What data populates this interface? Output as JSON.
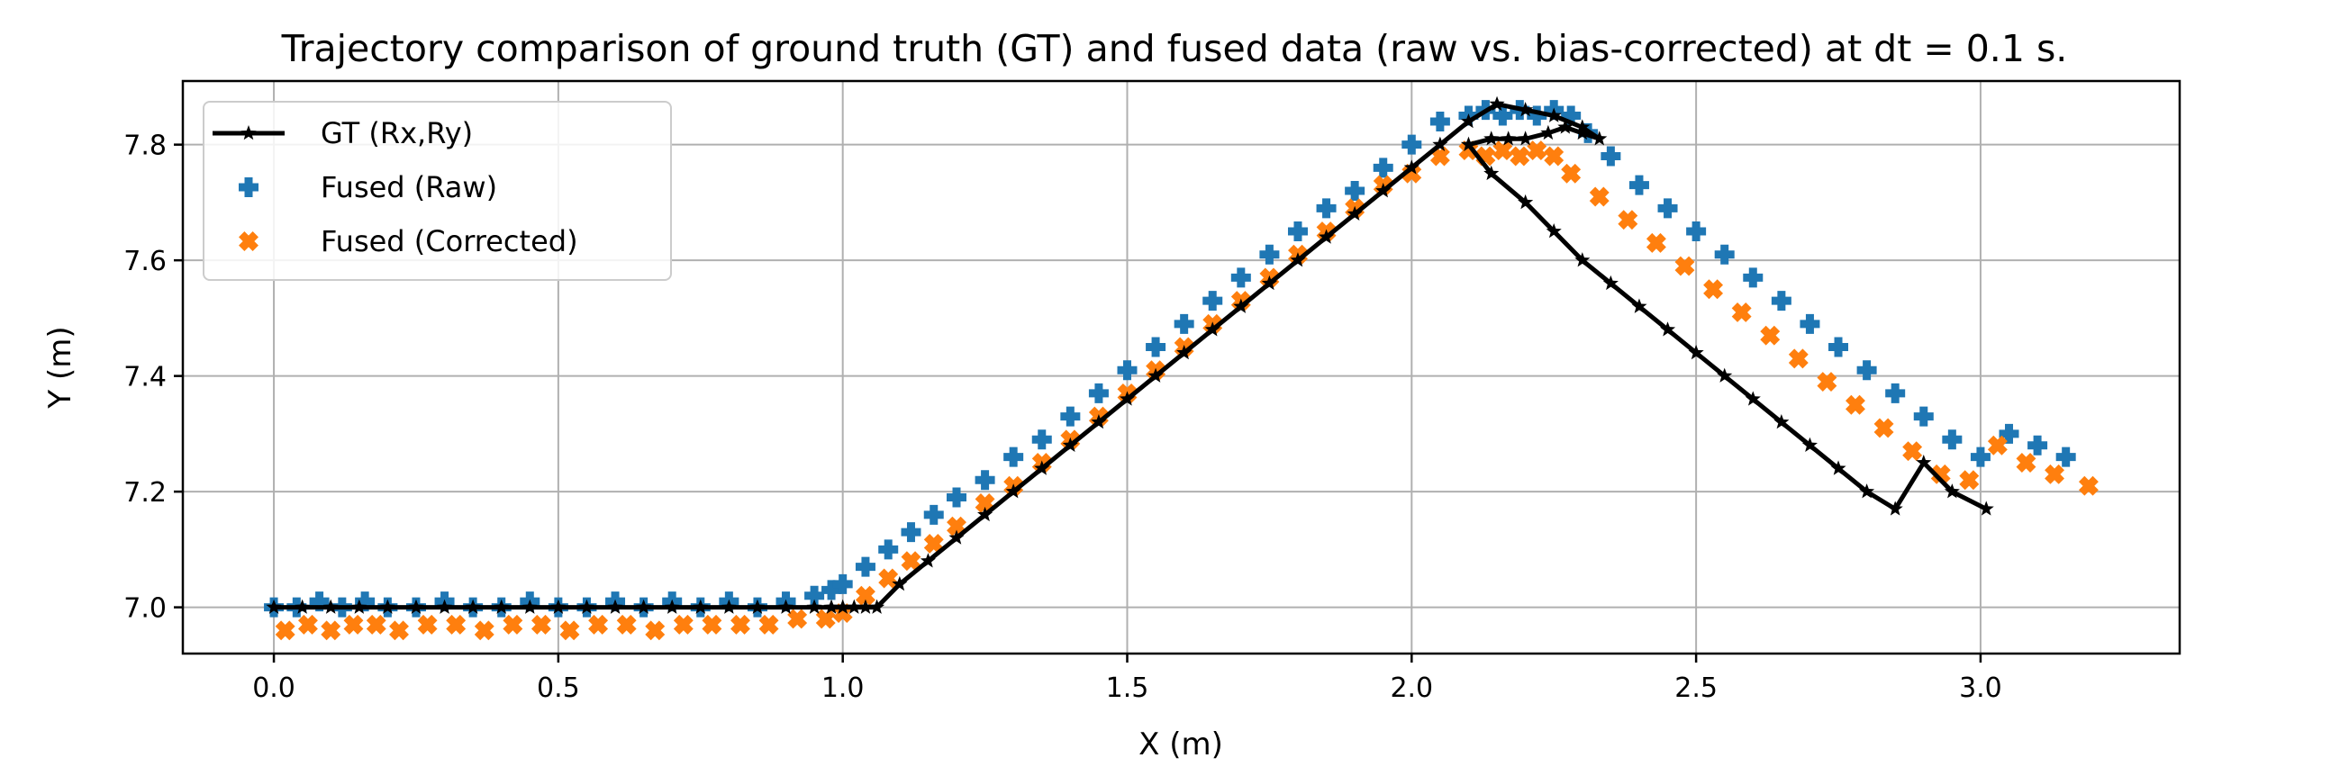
{
  "chart_data": {
    "type": "scatter",
    "title": "Trajectory comparison of ground truth (GT) and fused data (raw vs. bias-corrected) at dt = 0.1 s.",
    "xlabel": "X (m)",
    "ylabel": "Y (m)",
    "xlim": [
      -0.16,
      3.35
    ],
    "ylim": [
      6.92,
      7.91
    ],
    "xticks": [
      0.0,
      0.5,
      1.0,
      1.5,
      2.0,
      2.5,
      3.0
    ],
    "xtick_labels": [
      "0.0",
      "0.5",
      "1.0",
      "1.5",
      "2.0",
      "2.5",
      "3.0"
    ],
    "yticks": [
      7.0,
      7.2,
      7.4,
      7.6,
      7.8
    ],
    "ytick_labels": [
      "7.0",
      "7.2",
      "7.4",
      "7.6",
      "7.8"
    ],
    "grid": true,
    "legend_position": "top-left",
    "series": [
      {
        "name": "GT (Rx,Ry)",
        "kind": "line-star",
        "color": "#000000",
        "x": [
          0.0,
          0.05,
          0.1,
          0.15,
          0.2,
          0.25,
          0.3,
          0.35,
          0.4,
          0.45,
          0.5,
          0.55,
          0.6,
          0.65,
          0.7,
          0.75,
          0.8,
          0.85,
          0.9,
          0.95,
          0.98,
          1.0,
          1.02,
          1.04,
          1.06,
          1.1,
          1.15,
          1.2,
          1.25,
          1.3,
          1.35,
          1.4,
          1.45,
          1.5,
          1.55,
          1.6,
          1.65,
          1.7,
          1.75,
          1.8,
          1.85,
          1.9,
          1.95,
          2.0,
          2.05,
          2.1,
          2.15,
          2.2,
          2.25,
          2.3,
          2.33,
          2.3,
          2.27,
          2.24,
          2.2,
          2.17,
          2.14,
          2.1,
          2.14,
          2.2,
          2.25,
          2.3,
          2.35,
          2.4,
          2.45,
          2.5,
          2.55,
          2.6,
          2.65,
          2.7,
          2.75,
          2.8,
          2.85,
          2.9,
          2.95,
          3.01
        ],
        "y": [
          7.0,
          7.0,
          7.0,
          7.0,
          7.0,
          7.0,
          7.0,
          7.0,
          7.0,
          7.0,
          7.0,
          7.0,
          7.0,
          7.0,
          7.0,
          7.0,
          7.0,
          7.0,
          7.0,
          7.0,
          7.0,
          7.0,
          7.0,
          7.0,
          7.0,
          7.04,
          7.08,
          7.12,
          7.16,
          7.2,
          7.24,
          7.28,
          7.32,
          7.36,
          7.4,
          7.44,
          7.48,
          7.52,
          7.56,
          7.6,
          7.64,
          7.68,
          7.72,
          7.76,
          7.8,
          7.84,
          7.87,
          7.86,
          7.85,
          7.83,
          7.81,
          7.82,
          7.83,
          7.82,
          7.81,
          7.81,
          7.81,
          7.8,
          7.75,
          7.7,
          7.65,
          7.6,
          7.56,
          7.52,
          7.48,
          7.44,
          7.4,
          7.36,
          7.32,
          7.28,
          7.24,
          7.2,
          7.17,
          7.25,
          7.2,
          7.17
        ]
      },
      {
        "name": "Fused (Raw)",
        "kind": "plus",
        "color": "#1f77b4",
        "x": [
          0.0,
          0.04,
          0.08,
          0.12,
          0.16,
          0.2,
          0.25,
          0.3,
          0.35,
          0.4,
          0.45,
          0.5,
          0.55,
          0.6,
          0.65,
          0.7,
          0.75,
          0.8,
          0.85,
          0.9,
          0.95,
          0.98,
          1.0,
          1.04,
          1.08,
          1.12,
          1.16,
          1.2,
          1.25,
          1.3,
          1.35,
          1.4,
          1.45,
          1.5,
          1.55,
          1.6,
          1.65,
          1.7,
          1.75,
          1.8,
          1.85,
          1.9,
          1.95,
          2.0,
          2.05,
          2.1,
          2.13,
          2.16,
          2.19,
          2.22,
          2.25,
          2.28,
          2.31,
          2.35,
          2.4,
          2.45,
          2.5,
          2.55,
          2.6,
          2.65,
          2.7,
          2.75,
          2.8,
          2.85,
          2.9,
          2.95,
          3.0,
          3.05,
          3.1,
          3.15
        ],
        "y": [
          7.0,
          7.0,
          7.01,
          7.0,
          7.01,
          7.0,
          7.0,
          7.01,
          7.0,
          7.0,
          7.01,
          7.0,
          7.0,
          7.01,
          7.0,
          7.01,
          7.0,
          7.01,
          7.0,
          7.01,
          7.02,
          7.03,
          7.04,
          7.07,
          7.1,
          7.13,
          7.16,
          7.19,
          7.22,
          7.26,
          7.29,
          7.33,
          7.37,
          7.41,
          7.45,
          7.49,
          7.53,
          7.57,
          7.61,
          7.65,
          7.69,
          7.72,
          7.76,
          7.8,
          7.84,
          7.85,
          7.86,
          7.85,
          7.86,
          7.85,
          7.86,
          7.85,
          7.82,
          7.78,
          7.73,
          7.69,
          7.65,
          7.61,
          7.57,
          7.53,
          7.49,
          7.45,
          7.41,
          7.37,
          7.33,
          7.29,
          7.26,
          7.3,
          7.28,
          7.26
        ]
      },
      {
        "name": "Fused (Corrected)",
        "kind": "cross",
        "color": "#ff7f0e",
        "x": [
          0.02,
          0.06,
          0.1,
          0.14,
          0.18,
          0.22,
          0.27,
          0.32,
          0.37,
          0.42,
          0.47,
          0.52,
          0.57,
          0.62,
          0.67,
          0.72,
          0.77,
          0.82,
          0.87,
          0.92,
          0.97,
          1.0,
          1.04,
          1.08,
          1.12,
          1.16,
          1.2,
          1.25,
          1.3,
          1.35,
          1.4,
          1.45,
          1.5,
          1.55,
          1.6,
          1.65,
          1.7,
          1.75,
          1.8,
          1.85,
          1.9,
          1.95,
          2.0,
          2.05,
          2.1,
          2.13,
          2.16,
          2.19,
          2.22,
          2.25,
          2.28,
          2.33,
          2.38,
          2.43,
          2.48,
          2.53,
          2.58,
          2.63,
          2.68,
          2.73,
          2.78,
          2.83,
          2.88,
          2.93,
          2.98,
          3.03,
          3.08,
          3.13,
          3.19
        ],
        "y": [
          6.96,
          6.97,
          6.96,
          6.97,
          6.97,
          6.96,
          6.97,
          6.97,
          6.96,
          6.97,
          6.97,
          6.96,
          6.97,
          6.97,
          6.96,
          6.97,
          6.97,
          6.97,
          6.97,
          6.98,
          6.98,
          6.99,
          7.02,
          7.05,
          7.08,
          7.11,
          7.14,
          7.18,
          7.21,
          7.25,
          7.29,
          7.33,
          7.37,
          7.41,
          7.45,
          7.49,
          7.53,
          7.57,
          7.61,
          7.65,
          7.69,
          7.73,
          7.75,
          7.78,
          7.79,
          7.78,
          7.79,
          7.78,
          7.79,
          7.78,
          7.75,
          7.71,
          7.67,
          7.63,
          7.59,
          7.55,
          7.51,
          7.47,
          7.43,
          7.39,
          7.35,
          7.31,
          7.27,
          7.23,
          7.22,
          7.28,
          7.25,
          7.23,
          7.21
        ]
      }
    ]
  }
}
